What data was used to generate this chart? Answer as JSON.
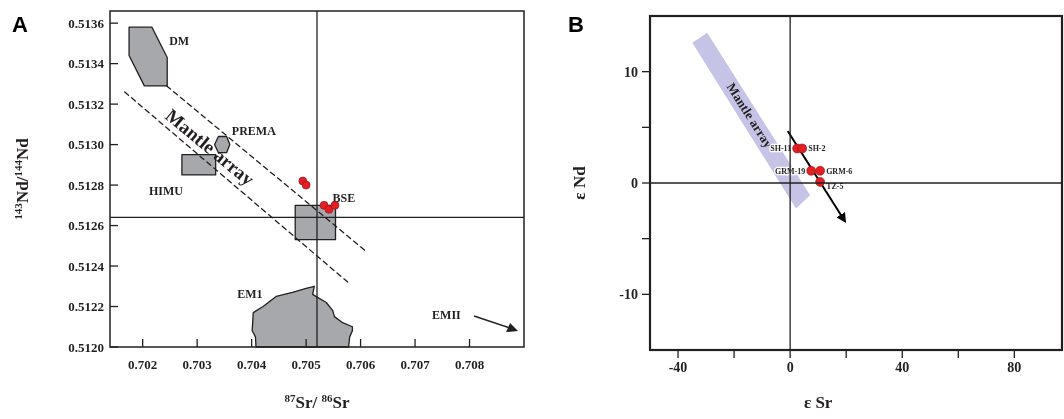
{
  "chart_data": [
    {
      "type": "scatter",
      "title": "A",
      "xlabel": "$^{87}$Sr/ $^{86}$Sr",
      "ylabel": "$^{143}$Nd/$^{144}$Nd",
      "xlim": [
        0.7014,
        0.709
      ],
      "ylim": [
        0.512,
        0.51366
      ],
      "xticks": [
        0.702,
        0.703,
        0.704,
        0.705,
        0.706,
        0.707,
        0.708
      ],
      "yticks": [
        {
          "value": 0.512,
          "label": "0.5120"
        },
        0.5122,
        0.5124,
        0.5126,
        0.5128,
        {
          "value": 0.513,
          "label": "0.5130"
        },
        0.5132,
        0.5134,
        0.5136
      ],
      "ref_lines": [
        {
          "axis": "x",
          "value": 0.7052
        },
        {
          "axis": "y",
          "value": 0.51264
        }
      ],
      "annotations": [
        "Mantle array",
        "EMII"
      ],
      "series": [
        {
          "type": "area",
          "name": "DM",
          "color": "#a6a8ab",
          "line_style": "solid",
          "x": [
            0.70175,
            0.70217,
            0.70245,
            0.70245,
            0.70203,
            0.70175
          ],
          "values": [
            0.51358,
            0.51358,
            0.51343,
            0.51329,
            0.51329,
            0.51344
          ]
        },
        {
          "type": "area",
          "name": "PREMA",
          "color": "#a6a8ab",
          "line_style": "solid",
          "x": [
            0.70332,
            0.70339,
            0.70354,
            0.7036,
            0.70354,
            0.70339
          ],
          "values": [
            0.513,
            0.51304,
            0.51304,
            0.513,
            0.51296,
            0.51296
          ]
        },
        {
          "type": "area",
          "name": "HIMU",
          "color": "#a6a8ab",
          "line_style": "solid",
          "x": [
            0.70272,
            0.70334,
            0.70334,
            0.70272
          ],
          "values": [
            0.51295,
            0.51295,
            0.51285,
            0.51285
          ]
        },
        {
          "type": "area",
          "name": "BSE",
          "color": "#a6a8ab",
          "line_style": "solid",
          "x": [
            0.7048,
            0.70554,
            0.70554,
            0.7048
          ],
          "values": [
            0.5127,
            0.5127,
            0.51253,
            0.51253
          ]
        },
        {
          "type": "area",
          "name": "EM1",
          "color": "#a6a8ab",
          "line_style": "solid",
          "x": [
            0.70408,
            0.70407,
            0.70401,
            0.70403,
            0.70421,
            0.70445,
            0.70475,
            0.705,
            0.70515,
            0.70512,
            0.70518,
            0.70537,
            0.70549,
            0.70552,
            0.70567,
            0.70585,
            0.70585,
            0.7058,
            0.70578
          ],
          "values": [
            0.512,
            0.51205,
            0.51208,
            0.51217,
            0.5122,
            0.51225,
            0.51227,
            0.51229,
            0.5123,
            0.51226,
            0.51225,
            0.51222,
            0.51218,
            0.51215,
            0.51212,
            0.5121,
            0.51208,
            0.51205,
            0.512
          ]
        },
        {
          "type": "line",
          "color": "#231f20",
          "line_style": "dashed",
          "x": [
            0.70244,
            0.70611
          ],
          "values": [
            0.51329,
            0.51247
          ]
        },
        {
          "type": "line",
          "color": "#231f20",
          "line_style": "dashed",
          "x": [
            0.70167,
            0.70581
          ],
          "values": [
            0.51326,
            0.51231
          ]
        },
        {
          "color": "#e31e24",
          "marker": "circle",
          "x": [
            0.70494,
            0.705,
            0.70533,
            0.70542,
            0.70553
          ],
          "values": [
            0.51282,
            0.5128,
            0.5127,
            0.51268,
            0.5127
          ]
        }
      ]
    },
    {
      "type": "scatter",
      "title": "B",
      "xlabel": "ε Sr",
      "ylabel": "ε Nd",
      "xlim": [
        -50,
        97
      ],
      "ylim": [
        -15,
        15
      ],
      "xticks": [
        -40,
        {
          "value": -20,
          "label": null
        },
        0,
        {
          "value": 20,
          "label": null
        },
        40,
        {
          "value": 60,
          "label": null
        },
        80
      ],
      "yticks": [
        -10,
        {
          "value": -5,
          "label": null
        },
        0,
        {
          "value": 5,
          "label": null
        },
        10
      ],
      "ref_lines": [
        {
          "axis": "x",
          "value": 0
        },
        {
          "axis": "y",
          "value": 0
        }
      ],
      "series": [
        {
          "type": "area",
          "name": "Mantle array",
          "color": "#c5c3e6",
          "x": [
            -34.9,
            -29.6,
            7.1,
            2.1
          ],
          "values": [
            12.6,
            13.5,
            -1.1,
            -2.3
          ]
        },
        {
          "type": "line",
          "color": "#000000",
          "line_style": "solid",
          "x": [
            -0.7,
            19.2
          ],
          "values": [
            4.6,
            -3.3
          ]
        },
        {
          "name": "SH-11",
          "color": "#e31e24",
          "marker": "circle",
          "x": [
            2.5
          ],
          "values": [
            3.1
          ]
        },
        {
          "name": "SH-2",
          "color": "#e31e24",
          "marker": "circle",
          "x": [
            4.3
          ],
          "values": [
            3.1
          ]
        },
        {
          "name": "GRM-19",
          "color": "#e31e24",
          "marker": "circle",
          "x": [
            7.5
          ],
          "values": [
            1.1
          ]
        },
        {
          "name": "GRM-6",
          "color": "#e31e24",
          "marker": "circle",
          "x": [
            10.7
          ],
          "values": [
            1.1
          ]
        },
        {
          "name": "TZ-5",
          "color": "#e31e24",
          "marker": "circle",
          "x": [
            10.7
          ],
          "values": [
            0.1
          ]
        }
      ]
    }
  ]
}
